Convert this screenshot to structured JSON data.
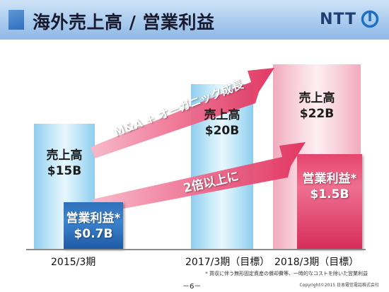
{
  "header": {
    "title": "海外売上高 / 営業利益",
    "logo_text": "NTT",
    "logo_icon": "ntt-logo-icon"
  },
  "chart": {
    "bars": {
      "revenue_2015": {
        "label": "売上高",
        "value": "$15B"
      },
      "op_2015": {
        "label": "営業利益*",
        "value": "$0.7B"
      },
      "revenue_2017": {
        "label": "売上高",
        "value": "$20B"
      },
      "revenue_2018": {
        "label": "売上高",
        "value": "$22B"
      },
      "op_2018": {
        "label": "営業利益*",
        "value": "$1.5B"
      }
    },
    "arrows": {
      "upper": "M&A + オーガニック成長",
      "lower": "2倍以上に"
    },
    "x_labels": {
      "fy2015": "2015/3期",
      "fy2017": "2017/3期（目標）",
      "fy2018": "2018/3期（目標）"
    },
    "colors": {
      "revenue_blue": "#c5e9f8",
      "revenue_pink": "#f9d7e0",
      "op_blue": "#2f70b8",
      "op_pink": "#e5456e",
      "arrow": "#e53d66"
    }
  },
  "chart_data": {
    "type": "bar",
    "categories": [
      "2015/3期",
      "2017/3期（目標）",
      "2018/3期（目標）"
    ],
    "series": [
      {
        "name": "売上高",
        "values": [
          15,
          20,
          22
        ]
      },
      {
        "name": "営業利益*",
        "values": [
          0.7,
          null,
          1.5
        ]
      }
    ],
    "title": "海外売上高 / 営業利益",
    "xlabel": "",
    "ylabel": ""
  },
  "footer": {
    "footnote": "* 買収に伴う無形固定資産の償却費等、一時的なコストを除いた営業利益",
    "page_number": "－6－",
    "copyright": "Copyright©2015 日本電信電話株式会社"
  }
}
